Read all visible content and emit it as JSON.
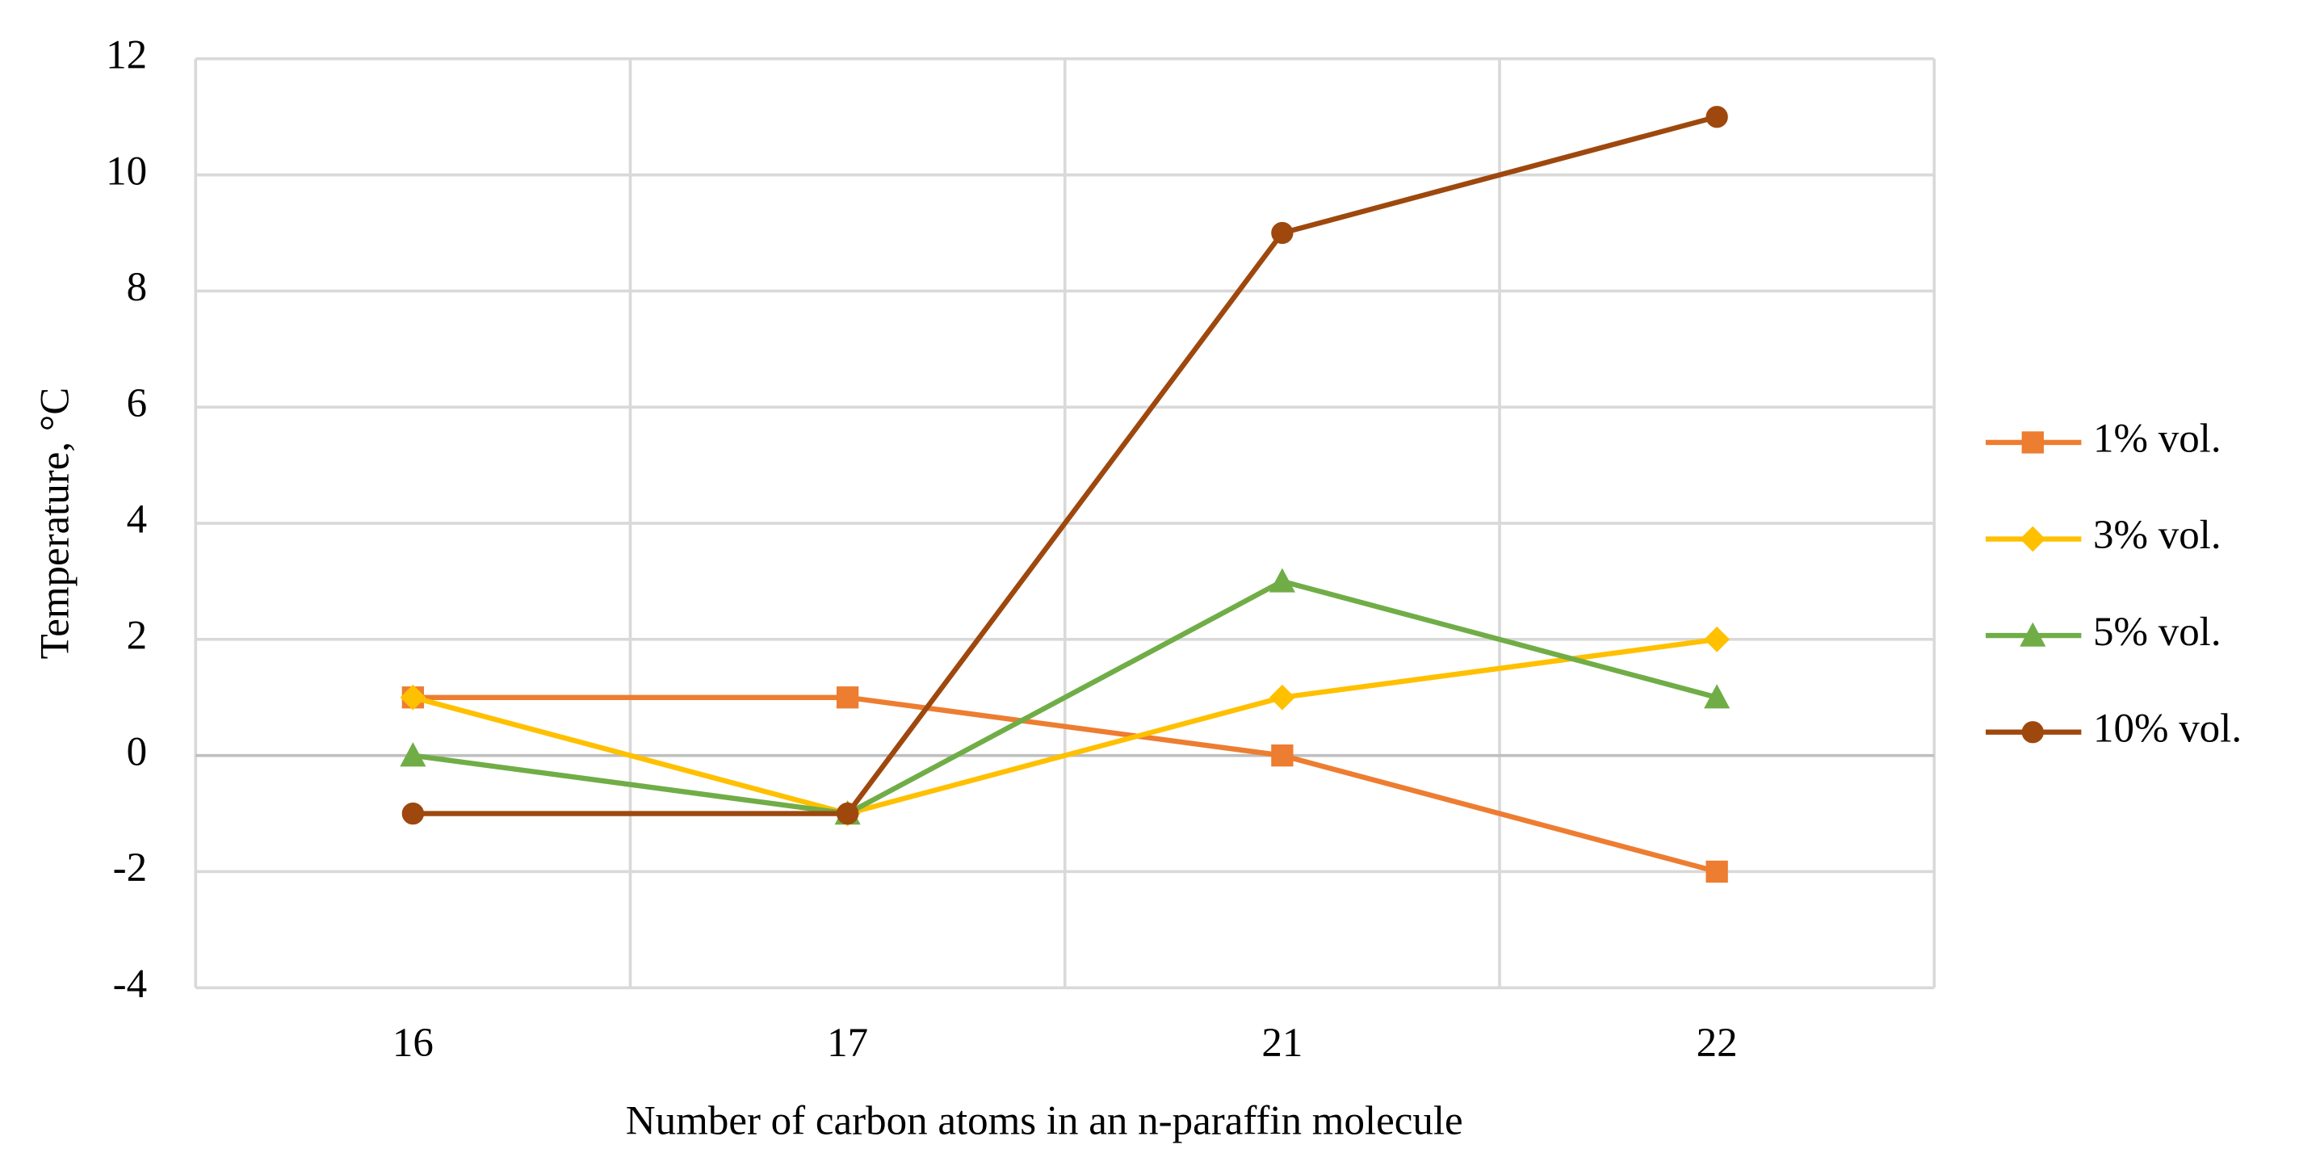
{
  "chart_data": {
    "type": "line",
    "x_label": "Number of carbon atoms in an n-paraffin molecule",
    "y_label": "Temperature, °C",
    "categories": [
      "16",
      "17",
      "21",
      "22"
    ],
    "series": [
      {
        "name": "1% vol.",
        "color": "#ED7D31",
        "marker": "square",
        "values": [
          1,
          1,
          0,
          -2
        ]
      },
      {
        "name": "3% vol.",
        "color": "#FFC000",
        "marker": "diamond",
        "values": [
          1,
          -1,
          1,
          2
        ]
      },
      {
        "name": "5% vol.",
        "color": "#70AD47",
        "marker": "triangle",
        "values": [
          0,
          -1,
          3,
          1
        ]
      },
      {
        "name": "10% vol.",
        "color": "#9E480E",
        "marker": "circle",
        "values": [
          -1,
          -1,
          9,
          11
        ]
      }
    ],
    "ylim": [
      -4,
      12
    ],
    "yticks": [
      -4,
      -2,
      0,
      2,
      4,
      6,
      8,
      10,
      12
    ],
    "grid": true,
    "legend": "right"
  }
}
